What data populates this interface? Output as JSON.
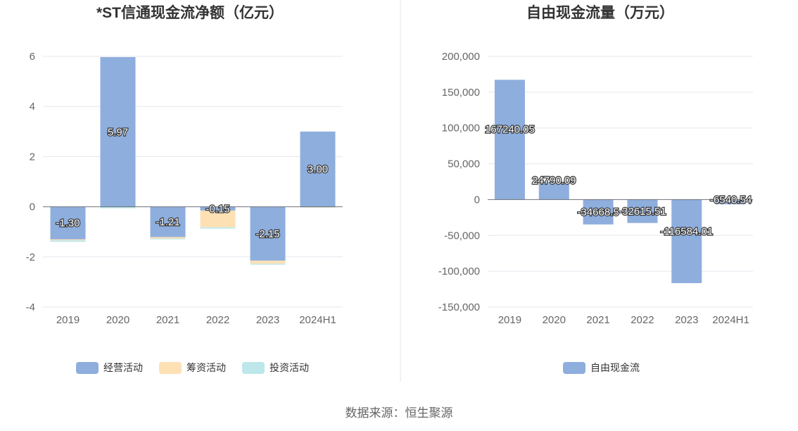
{
  "footer": {
    "source": "数据来源：恒生聚源"
  },
  "chart_data": [
    {
      "type": "bar",
      "stacked": true,
      "title": "*ST信通现金流净额（亿元）",
      "categories": [
        "2019",
        "2020",
        "2021",
        "2022",
        "2023",
        "2024H1"
      ],
      "ylim": [
        -4,
        6
      ],
      "yticks": [
        "-4",
        "-2",
        "0",
        "2",
        "4",
        "6"
      ],
      "grid": true,
      "legend_position": "bottom",
      "series": [
        {
          "name": "经营活动",
          "color": "#8eaedd",
          "values": [
            -1.3,
            5.97,
            -1.21,
            -0.15,
            -2.15,
            3.0
          ],
          "labels": [
            "-1.30",
            "5.97",
            "-1.21",
            "-0.15",
            "-2.15",
            "3.00"
          ]
        },
        {
          "name": "筹资活动",
          "color": "#fde0b4",
          "values": [
            -0.04,
            0.0,
            -0.06,
            -0.67,
            -0.12,
            -0.03
          ]
        },
        {
          "name": "投资活动",
          "color": "#bde7ea",
          "values": [
            -0.06,
            -0.06,
            -0.03,
            -0.05,
            -0.04,
            -0.01
          ]
        }
      ]
    },
    {
      "type": "bar",
      "title": "自由现金流量（万元）",
      "categories": [
        "2019",
        "2020",
        "2021",
        "2022",
        "2023",
        "2024H1"
      ],
      "ylim": [
        -150000,
        200000
      ],
      "yticks": [
        "-150,000",
        "-100,000",
        "-50,000",
        "0",
        "50,000",
        "100,000",
        "150,000",
        "200,000"
      ],
      "grid": true,
      "legend_position": "bottom",
      "series": [
        {
          "name": "自由现金流",
          "color": "#8eaedd",
          "values": [
            167240.05,
            24790.09,
            -34668.5,
            -32615.51,
            -116584.01,
            -6540.54
          ],
          "labels": [
            "167240.05",
            "24790.09",
            "-34668.5",
            "-32615.51",
            "-116584.01",
            "-6540.54"
          ]
        }
      ]
    }
  ]
}
